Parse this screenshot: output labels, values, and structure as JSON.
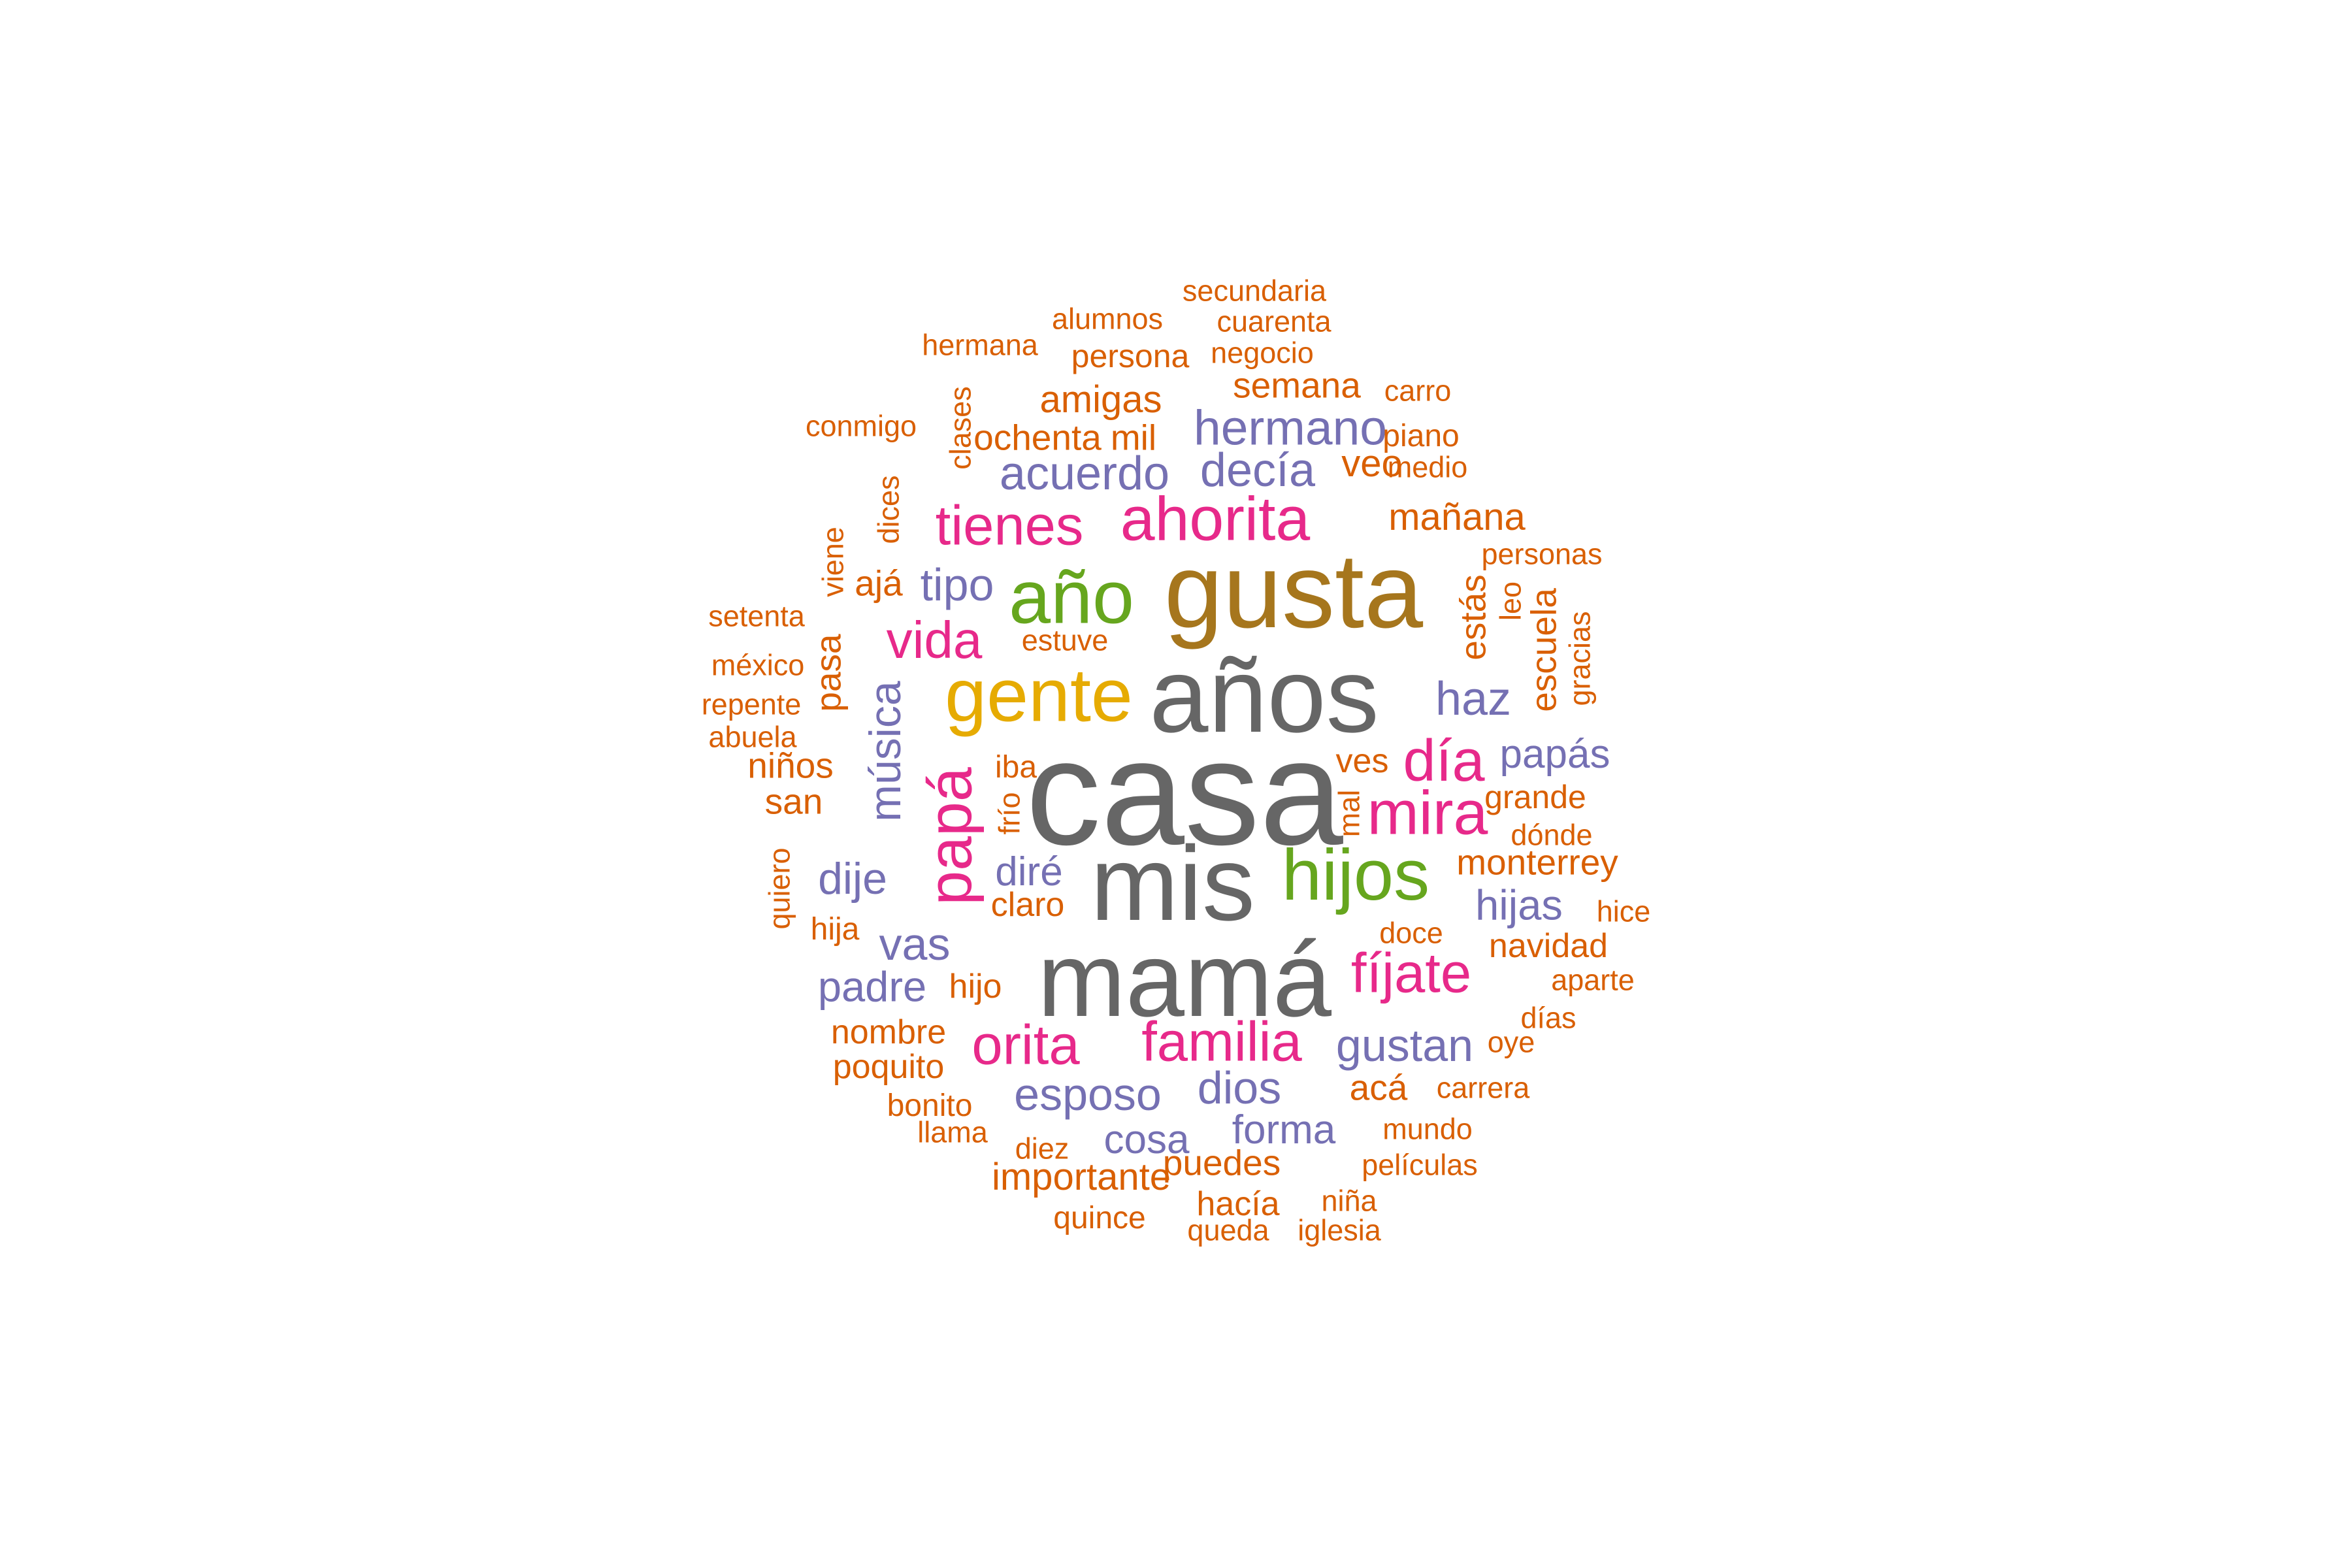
{
  "palette": {
    "gray": "#666666",
    "olive": "#A6761D",
    "green": "#66A61E",
    "yellow": "#E6AB02",
    "magenta": "#E7298A",
    "purple": "#7570B3",
    "orange": "#D95F02"
  },
  "words": [
    {
      "text": "casa",
      "color": "gray"
    },
    {
      "text": "mamá",
      "color": "gray"
    },
    {
      "text": "mis",
      "color": "gray"
    },
    {
      "text": "años",
      "color": "gray"
    },
    {
      "text": "gusta",
      "color": "olive"
    },
    {
      "text": "gente",
      "color": "yellow"
    },
    {
      "text": "año",
      "color": "green"
    },
    {
      "text": "hijos",
      "color": "green"
    },
    {
      "text": "ahorita",
      "color": "magenta"
    },
    {
      "text": "tienes",
      "color": "magenta"
    },
    {
      "text": "familia",
      "color": "magenta"
    },
    {
      "text": "orita",
      "color": "magenta"
    },
    {
      "text": "papá",
      "color": "magenta"
    },
    {
      "text": "mira",
      "color": "magenta"
    },
    {
      "text": "día",
      "color": "magenta"
    },
    {
      "text": "fíjate",
      "color": "magenta"
    },
    {
      "text": "vida",
      "color": "magenta"
    },
    {
      "text": "hermano",
      "color": "purple"
    },
    {
      "text": "acuerdo",
      "color": "purple"
    },
    {
      "text": "decía",
      "color": "purple"
    },
    {
      "text": "tipo",
      "color": "purple"
    },
    {
      "text": "haz",
      "color": "purple"
    },
    {
      "text": "música",
      "color": "purple"
    },
    {
      "text": "papás",
      "color": "purple"
    },
    {
      "text": "dije",
      "color": "purple"
    },
    {
      "text": "diré",
      "color": "purple"
    },
    {
      "text": "hijas",
      "color": "purple"
    },
    {
      "text": "vas",
      "color": "purple"
    },
    {
      "text": "padre",
      "color": "purple"
    },
    {
      "text": "gustan",
      "color": "purple"
    },
    {
      "text": "esposo",
      "color": "purple"
    },
    {
      "text": "dios",
      "color": "purple"
    },
    {
      "text": "cosa",
      "color": "purple"
    },
    {
      "text": "forma",
      "color": "purple"
    },
    {
      "text": "secundaria",
      "color": "orange"
    },
    {
      "text": "alumnos",
      "color": "orange"
    },
    {
      "text": "cuarenta",
      "color": "orange"
    },
    {
      "text": "hermana",
      "color": "orange"
    },
    {
      "text": "persona",
      "color": "orange"
    },
    {
      "text": "negocio",
      "color": "orange"
    },
    {
      "text": "amigas",
      "color": "orange"
    },
    {
      "text": "semana",
      "color": "orange"
    },
    {
      "text": "carro",
      "color": "orange"
    },
    {
      "text": "conmigo",
      "color": "orange"
    },
    {
      "text": "clases",
      "color": "orange"
    },
    {
      "text": "ochenta",
      "color": "orange"
    },
    {
      "text": "mil",
      "color": "orange"
    },
    {
      "text": "piano",
      "color": "orange"
    },
    {
      "text": "veo",
      "color": "orange"
    },
    {
      "text": "medio",
      "color": "orange"
    },
    {
      "text": "dices",
      "color": "orange"
    },
    {
      "text": "mañana",
      "color": "orange"
    },
    {
      "text": "viene",
      "color": "orange"
    },
    {
      "text": "personas",
      "color": "orange"
    },
    {
      "text": "ajá",
      "color": "orange"
    },
    {
      "text": "setenta",
      "color": "orange"
    },
    {
      "text": "estás",
      "color": "orange"
    },
    {
      "text": "leo",
      "color": "orange"
    },
    {
      "text": "escuela",
      "color": "orange"
    },
    {
      "text": "gracias",
      "color": "orange"
    },
    {
      "text": "estuve",
      "color": "orange"
    },
    {
      "text": "méxico",
      "color": "orange"
    },
    {
      "text": "pasa",
      "color": "orange"
    },
    {
      "text": "repente",
      "color": "orange"
    },
    {
      "text": "abuela",
      "color": "orange"
    },
    {
      "text": "niños",
      "color": "orange"
    },
    {
      "text": "iba",
      "color": "orange"
    },
    {
      "text": "ves",
      "color": "orange"
    },
    {
      "text": "grande",
      "color": "orange"
    },
    {
      "text": "san",
      "color": "orange"
    },
    {
      "text": "frío",
      "color": "orange"
    },
    {
      "text": "mal",
      "color": "orange"
    },
    {
      "text": "dónde",
      "color": "orange"
    },
    {
      "text": "quiero",
      "color": "orange"
    },
    {
      "text": "monterrey",
      "color": "orange"
    },
    {
      "text": "claro",
      "color": "orange"
    },
    {
      "text": "hice",
      "color": "orange"
    },
    {
      "text": "hija",
      "color": "orange"
    },
    {
      "text": "doce",
      "color": "orange"
    },
    {
      "text": "navidad",
      "color": "orange"
    },
    {
      "text": "hijo",
      "color": "orange"
    },
    {
      "text": "aparte",
      "color": "orange"
    },
    {
      "text": "días",
      "color": "orange"
    },
    {
      "text": "nombre",
      "color": "orange"
    },
    {
      "text": "oye",
      "color": "orange"
    },
    {
      "text": "poquito",
      "color": "orange"
    },
    {
      "text": "acá",
      "color": "orange"
    },
    {
      "text": "carrera",
      "color": "orange"
    },
    {
      "text": "bonito",
      "color": "orange"
    },
    {
      "text": "llama",
      "color": "orange"
    },
    {
      "text": "mundo",
      "color": "orange"
    },
    {
      "text": "diez",
      "color": "orange"
    },
    {
      "text": "importante",
      "color": "orange"
    },
    {
      "text": "puedes",
      "color": "orange"
    },
    {
      "text": "películas",
      "color": "orange"
    },
    {
      "text": "hacía",
      "color": "orange"
    },
    {
      "text": "niña",
      "color": "orange"
    },
    {
      "text": "quince",
      "color": "orange"
    },
    {
      "text": "queda",
      "color": "orange"
    },
    {
      "text": "iglesia",
      "color": "orange"
    }
  ]
}
